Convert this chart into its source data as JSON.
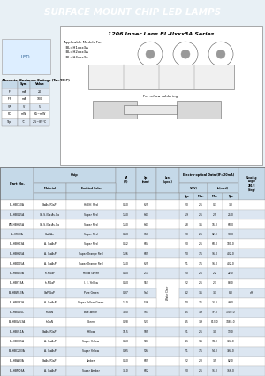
{
  "title": "SURFACE MOUNT CHIP LED LAMPS",
  "title_bg": "#5bb3d0",
  "title_color": "#ffffff",
  "bg_color": "#e8f0f5",
  "section_title": "1206 Inner Lens BL-Ilxxx3A Series",
  "table_header_bg": "#c5d9e8",
  "table_alt_bg": "#dce6f1",
  "table_white_bg": "#ffffff",
  "parts": [
    [
      "BL-HBC10A",
      "GaAsP/GaP",
      "Hi-Eff. Red",
      "0.10",
      "625",
      "2.0",
      "2.6",
      "0.3",
      "3.0",
      ""
    ],
    [
      "BL-HBG15A",
      "Ga.S./Ga:As.Ga",
      "Super Red",
      "1.60",
      "643",
      "1.9",
      "2.6",
      "2.5",
      "25.0",
      ""
    ],
    [
      "BM-HBH15A",
      "Ga.S./Ga:As.Ga",
      "Super Red",
      "1.60",
      "643",
      "1.8",
      "3.6",
      "16.0",
      "60.0",
      ""
    ],
    [
      "BL-HR73A",
      "GaAlAs",
      "Super Red",
      "0.60",
      "660",
      "2.0",
      "2.6",
      "12.0",
      "90.0",
      ""
    ],
    [
      "BL-HBH03A",
      "A. GaAsP",
      "Super Red",
      "0.12",
      "604",
      "2.0",
      "2.6",
      "60.0",
      "180.0",
      ""
    ],
    [
      "BL-HBH15A",
      "A. GaAsP",
      "Super Orange Red",
      "1.36",
      "605",
      "7.0",
      "7.6",
      "96.0",
      "402.0",
      ""
    ],
    [
      "BL-HBD05A",
      "A. GaAsP",
      "Super Orange Red",
      "1.50",
      "625",
      "7.1",
      "7.6",
      "96.0",
      "402.0",
      ""
    ],
    [
      "BL-HBa03A",
      "In.P.GaP",
      "Yellow Green",
      "0.60",
      "2-1",
      "2.0",
      "2.6",
      "2.2",
      "22.0",
      ""
    ],
    [
      "BL-HBY33A",
      "In.P.GaP",
      "I. E. Yellow",
      "0.60",
      "559",
      "2.2",
      "2.6",
      "2.3",
      "88.0",
      "Water Clear"
    ],
    [
      "BL-HBW13A",
      "GaP/GaP",
      "Pure Green",
      "0.37",
      "5a3",
      "3.2",
      "3.6",
      "3.7",
      "8.0",
      ""
    ],
    [
      "BL-HBG31A",
      "A. GaAsP",
      "Super Yellow-Green",
      "1.10",
      "536",
      "7.0",
      "7.6",
      "22.0",
      "49.0",
      ""
    ],
    [
      "BL-HBG00L",
      "InGaN",
      "Blue-white",
      "3.00",
      "503",
      "3.5",
      "3.9",
      "97.0",
      "1302.0",
      ""
    ],
    [
      "BL-HBGA53A",
      "InGaN",
      "Green",
      "0.28",
      "523",
      "3.5",
      "3.9",
      "813.0",
      "3485.0",
      ""
    ],
    [
      "BL-HBV11A",
      "GaAsP/GaP",
      "Yellow",
      "10.5",
      "585",
      "2.1",
      "2.6",
      "3.0",
      "13.0",
      ""
    ],
    [
      "BL-HBC05A",
      "A. GaAsP",
      "Super Yellow",
      "0.60",
      "597",
      "9.1",
      "9.6",
      "94.0",
      "394.0",
      ""
    ],
    [
      "BL-HBC203A",
      "A. GaAsP",
      "Super Yellow",
      "0.95",
      "594",
      "7.1",
      "7.6",
      "54.0",
      "394.0",
      ""
    ],
    [
      "BL-HBA33A",
      "GaAsP/GaP",
      "Amber",
      "0.10",
      "605",
      "2.2",
      "2.8",
      "3.5",
      "82.0",
      ""
    ],
    [
      "BL-HBM03A",
      "A. GaAsP",
      "Super Amber",
      "3.10",
      "602",
      "2.0",
      "2.6",
      "91.0",
      "366.0",
      ""
    ]
  ],
  "lens_note": "Water Clear",
  "lens_note_rows": [
    8,
    9,
    10
  ],
  "side_note": "off",
  "side_note_rows": [
    9
  ]
}
